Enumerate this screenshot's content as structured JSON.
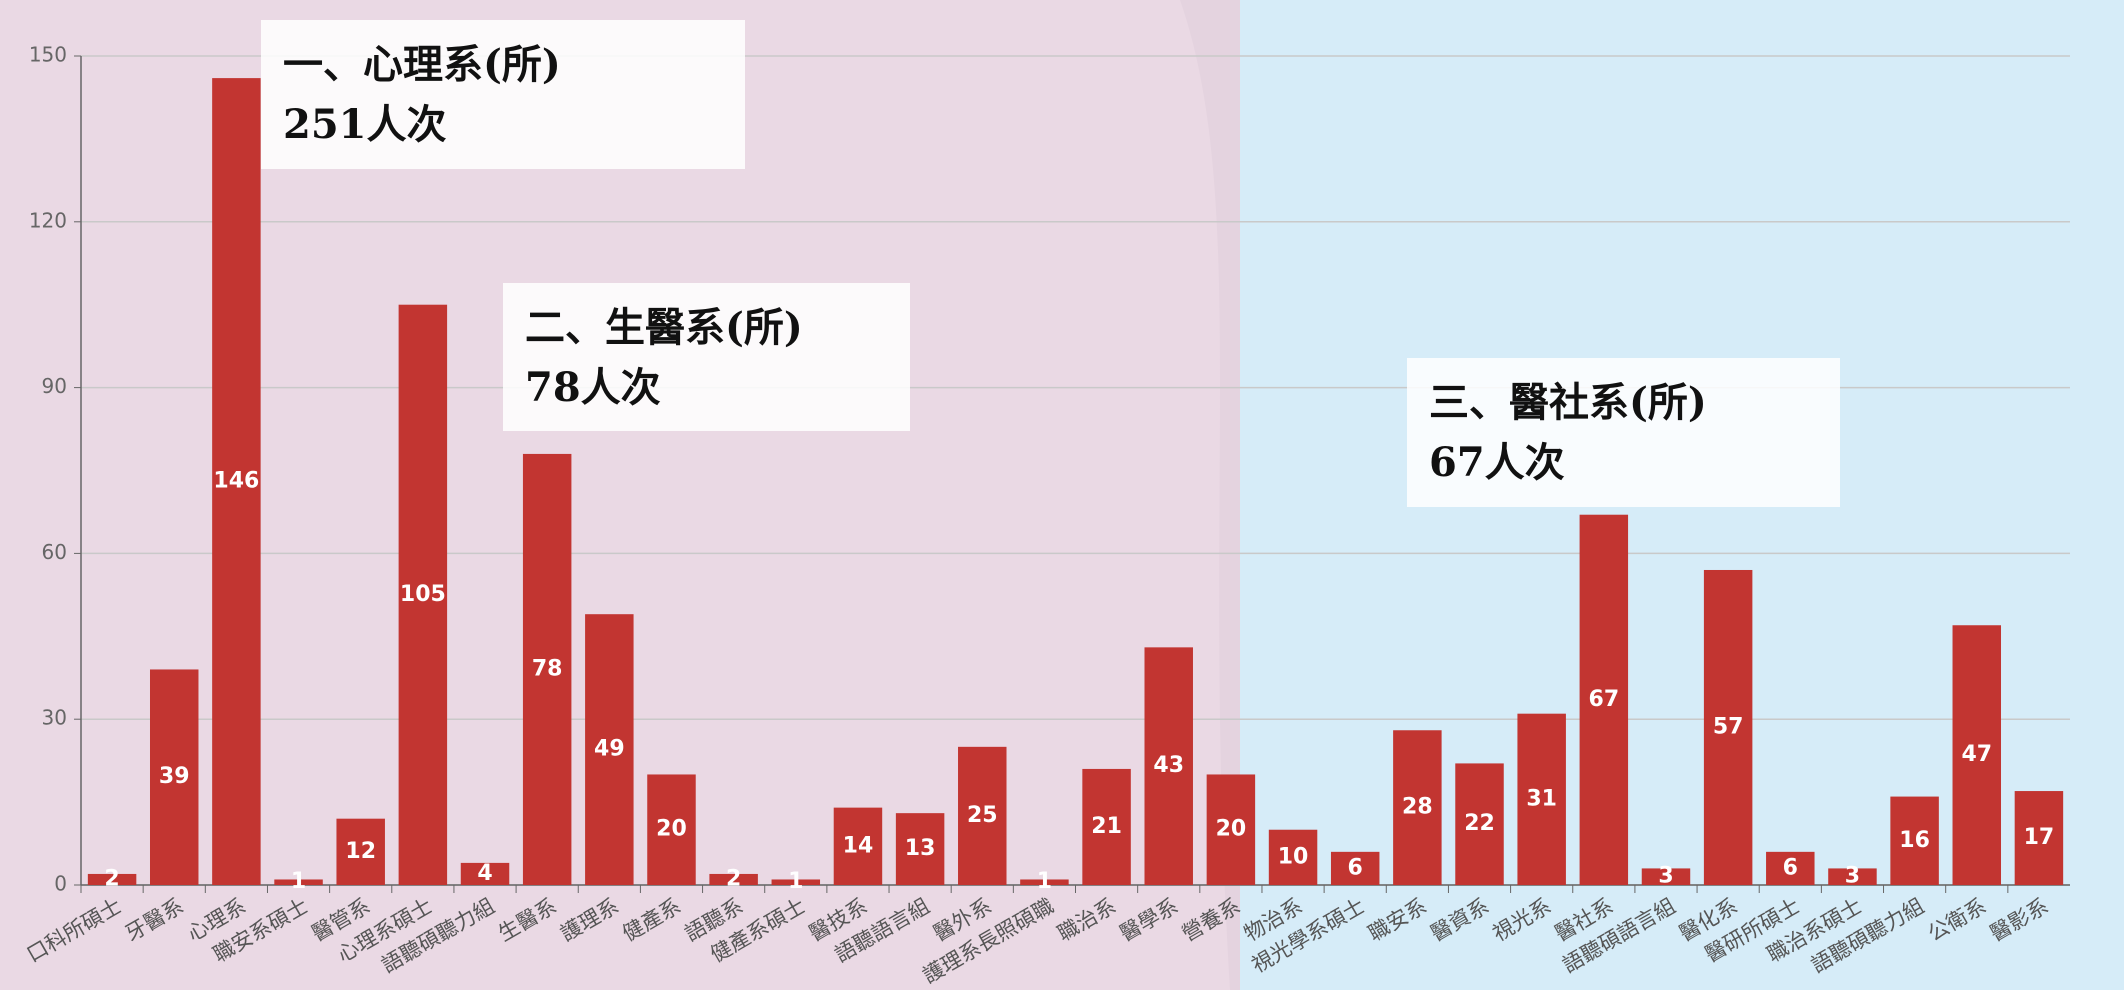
{
  "chart_data": {
    "type": "bar",
    "categories": [
      "口科所碩士",
      "牙醫系",
      "心理系",
      "職安系碩士",
      "醫管系",
      "心理系碩士",
      "語聽碩聽力組",
      "生醫系",
      "護理系",
      "健產系",
      "語聽系",
      "健產系碩士",
      "醫技系",
      "語聽語言組",
      "醫外系",
      "護理系長照碩職",
      "職治系",
      "醫學系",
      "營養系",
      "物治系",
      "視光學系碩士",
      "職安系",
      "醫資系",
      "視光系",
      "醫社系",
      "語聽碩語言組",
      "醫化系",
      "醫研所碩士",
      "職治系碩士",
      "語聽碩聽力組",
      "公衛系",
      "醫影系"
    ],
    "values": [
      2,
      39,
      146,
      1,
      12,
      105,
      4,
      78,
      49,
      20,
      2,
      1,
      14,
      13,
      25,
      1,
      21,
      43,
      20,
      10,
      6,
      28,
      22,
      31,
      67,
      3,
      57,
      6,
      3,
      16,
      47,
      17
    ],
    "color": "#c23531",
    "ylim": [
      0,
      150
    ],
    "yticks": [
      0,
      30,
      60,
      90,
      120,
      150
    ],
    "grid": true,
    "annotations": [
      {
        "title": "一、心理系(所)",
        "text": "251人次"
      },
      {
        "title": "二、生醫系(所)",
        "text": "78人次"
      },
      {
        "title": "三、醫社系(所)",
        "text": "67人次"
      }
    ]
  }
}
